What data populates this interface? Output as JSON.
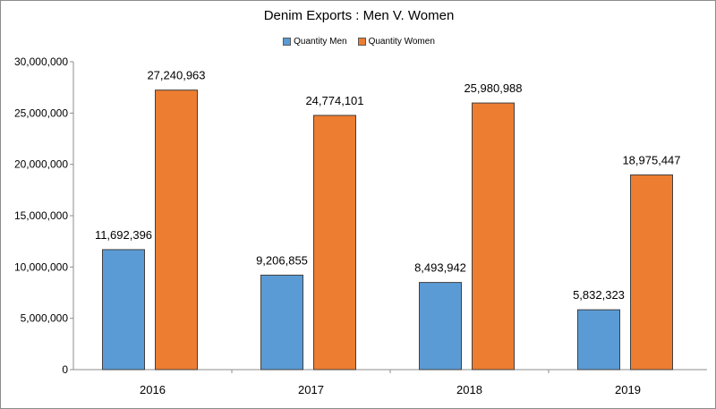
{
  "chart_data": {
    "type": "bar",
    "title": "Denim Exports : Men V. Women",
    "xlabel": "",
    "ylabel": "",
    "categories": [
      "2016",
      "2017",
      "2018",
      "2019"
    ],
    "series": [
      {
        "name": "Quantity Men",
        "color": "#5b9bd5",
        "values": [
          11692396,
          9206855,
          8493942,
          5832323
        ],
        "labels": [
          "11,692,396",
          "9,206,855",
          "8,493,942",
          "5,832,323"
        ]
      },
      {
        "name": "Quantity Women",
        "color": "#ed7d31",
        "values": [
          27240963,
          24774101,
          25980988,
          18975447
        ],
        "labels": [
          "27,240,963",
          "24,774,101",
          "25,980,988",
          "18,975,447"
        ]
      }
    ],
    "ylim": [
      0,
      30000000
    ],
    "yticks": [
      0,
      5000000,
      10000000,
      15000000,
      20000000,
      25000000,
      30000000
    ],
    "ytick_labels": [
      "0",
      "5,000,000",
      "10,000,000",
      "15,000,000",
      "20,000,000",
      "25,000,000",
      "30,000,000"
    ],
    "grid": false,
    "legend_position": "top"
  }
}
